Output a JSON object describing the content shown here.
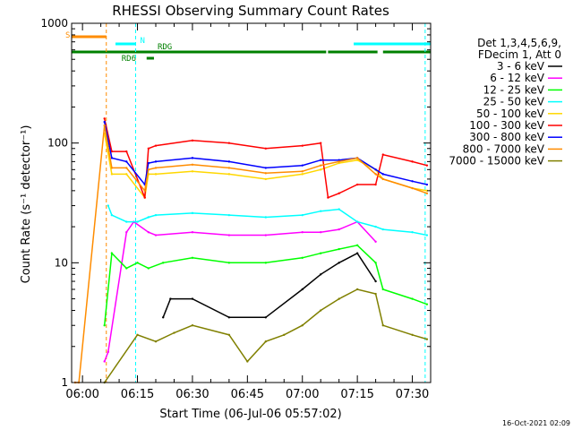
{
  "chart_data": {
    "type": "line",
    "title": "RHESSI Observing Summary Count Rates",
    "xlabel": "Start Time (06-Jul-06 05:57:02)",
    "ylabel": "Count Rate (s⁻¹ detector⁻¹)",
    "yscale": "log",
    "xlim": [
      "05:57:02",
      "07:35:00"
    ],
    "ylim": [
      1,
      1000
    ],
    "x_ticks": [
      "06:00",
      "06:15",
      "06:30",
      "06:45",
      "07:00",
      "07:15",
      "07:30"
    ],
    "y_ticks": [
      "1",
      "10",
      "100",
      "1000"
    ],
    "legend_header": [
      "Det 1,3,4,5,6,9,",
      "FDecim 1, Att 0"
    ],
    "legend_position": "right",
    "footer_date": "16-Oct-2021 02:09",
    "flags": [
      {
        "label": "S",
        "color": "#ff8c00",
        "segments": [
          [
            "05:57:02",
            "06:06:30"
          ]
        ]
      },
      {
        "label": "N",
        "color": "#00ffff",
        "segments": [
          [
            "06:09:00",
            "06:14:30"
          ],
          [
            "07:14:00",
            "07:35:00"
          ]
        ]
      },
      {
        "label": "RD6",
        "color": "#008000",
        "segments": [
          [
            "06:17:30",
            "06:19:30"
          ]
        ]
      },
      {
        "label": "RDG",
        "color": "#008000",
        "segments": [
          [
            "05:57:02",
            "07:06:30"
          ],
          [
            "07:07:00",
            "07:20:30"
          ],
          [
            "07:22:00",
            "07:35:00"
          ]
        ]
      }
    ],
    "vlines": [
      {
        "time": "06:06:30",
        "color": "#ff8c00",
        "style": "dashed"
      },
      {
        "time": "06:14:30",
        "color": "#00ffff",
        "style": "dashed"
      },
      {
        "time": "07:33:30",
        "color": "#00ffff",
        "style": "dashed"
      }
    ],
    "series": [
      {
        "name": "3 - 6 keV",
        "color": "#000000",
        "x": [
          "06:22",
          "06:24",
          "06:30",
          "06:40",
          "06:50",
          "07:00",
          "07:05",
          "07:10",
          "07:15",
          "07:20"
        ],
        "values": [
          3.5,
          5,
          5,
          3.5,
          3.5,
          6,
          8,
          10,
          12,
          7
        ]
      },
      {
        "name": "6 - 12 keV",
        "color": "#ff00ff",
        "x": [
          "06:06",
          "06:07",
          "06:12",
          "06:14",
          "06:18",
          "06:20",
          "06:30",
          "06:40",
          "06:50",
          "07:00",
          "07:05",
          "07:10",
          "07:15",
          "07:20"
        ],
        "values": [
          1.5,
          1.8,
          18,
          22,
          18,
          17,
          18,
          17,
          17,
          18,
          18,
          19,
          22,
          15
        ]
      },
      {
        "name": "12 - 25 keV",
        "color": "#00ff00",
        "x": [
          "06:06",
          "06:08",
          "06:12",
          "06:15",
          "06:18",
          "06:22",
          "06:30",
          "06:40",
          "06:50",
          "07:00",
          "07:05",
          "07:10",
          "07:15",
          "07:20",
          "07:22",
          "07:30",
          "07:34"
        ],
        "values": [
          3,
          12,
          9,
          10,
          9,
          10,
          11,
          10,
          10,
          11,
          12,
          13,
          14,
          10,
          6,
          5,
          4.5
        ]
      },
      {
        "name": "25 - 50 keV",
        "color": "#00ffff",
        "x": [
          "06:07",
          "06:08",
          "06:12",
          "06:15",
          "06:18",
          "06:20",
          "06:30",
          "06:40",
          "06:50",
          "07:00",
          "07:05",
          "07:10",
          "07:15",
          "07:20",
          "07:22",
          "07:30",
          "07:34"
        ],
        "values": [
          30,
          25,
          22,
          22,
          24,
          25,
          26,
          25,
          24,
          25,
          27,
          28,
          22,
          20,
          19,
          18,
          17
        ]
      },
      {
        "name": "50 - 100 keV",
        "color": "#ffd700",
        "x": [
          "06:06",
          "06:08",
          "06:12",
          "06:17",
          "06:18",
          "06:20",
          "06:30",
          "06:40",
          "06:50",
          "07:00",
          "07:05",
          "07:10",
          "07:15",
          "07:20",
          "07:22",
          "07:30",
          "07:34"
        ],
        "values": [
          120,
          55,
          55,
          35,
          55,
          55,
          58,
          55,
          50,
          55,
          60,
          68,
          72,
          60,
          50,
          42,
          40
        ]
      },
      {
        "name": "100 - 300 keV",
        "color": "#ff0000",
        "x": [
          "06:06",
          "06:08",
          "06:12",
          "06:17",
          "06:18",
          "06:20",
          "06:30",
          "06:40",
          "06:50",
          "07:00",
          "07:05",
          "07:07",
          "07:10",
          "07:15",
          "07:20",
          "07:22",
          "07:30",
          "07:34"
        ],
        "values": [
          160,
          85,
          85,
          35,
          90,
          95,
          105,
          100,
          90,
          95,
          100,
          35,
          38,
          45,
          45,
          80,
          70,
          65
        ]
      },
      {
        "name": "300 - 800 keV",
        "color": "#0000ff",
        "x": [
          "06:06",
          "06:08",
          "06:12",
          "06:17",
          "06:18",
          "06:20",
          "06:30",
          "06:40",
          "06:50",
          "07:00",
          "07:05",
          "07:10",
          "07:15",
          "07:20",
          "07:22",
          "07:30",
          "07:34"
        ],
        "values": [
          150,
          75,
          70,
          45,
          68,
          70,
          75,
          70,
          62,
          65,
          72,
          72,
          75,
          60,
          55,
          48,
          45
        ]
      },
      {
        "name": "800 - 7000 keV",
        "color": "#ff8c00",
        "x": [
          "05:58",
          "05:59",
          "06:06",
          "06:08",
          "06:12",
          "06:17",
          "06:18",
          "06:20",
          "06:30",
          "06:40",
          "06:50",
          "07:00",
          "07:05",
          "07:10",
          "07:15",
          "07:20",
          "07:22",
          "07:30",
          "07:34"
        ],
        "values": [
          1,
          1,
          140,
          62,
          62,
          40,
          60,
          62,
          66,
          62,
          56,
          58,
          65,
          70,
          75,
          55,
          50,
          42,
          38
        ]
      },
      {
        "name": "7000 - 15000 keV",
        "color": "#808000",
        "x": [
          "06:06",
          "06:15",
          "06:20",
          "06:25",
          "06:30",
          "06:40",
          "06:45",
          "06:50",
          "06:55",
          "07:00",
          "07:05",
          "07:10",
          "07:15",
          "07:20",
          "07:22",
          "07:30",
          "07:34"
        ],
        "values": [
          1,
          2.5,
          2.2,
          2.6,
          3,
          2.5,
          1.5,
          2.2,
          2.5,
          3,
          4,
          5,
          6,
          5.5,
          3,
          2.5,
          2.3
        ]
      }
    ]
  }
}
